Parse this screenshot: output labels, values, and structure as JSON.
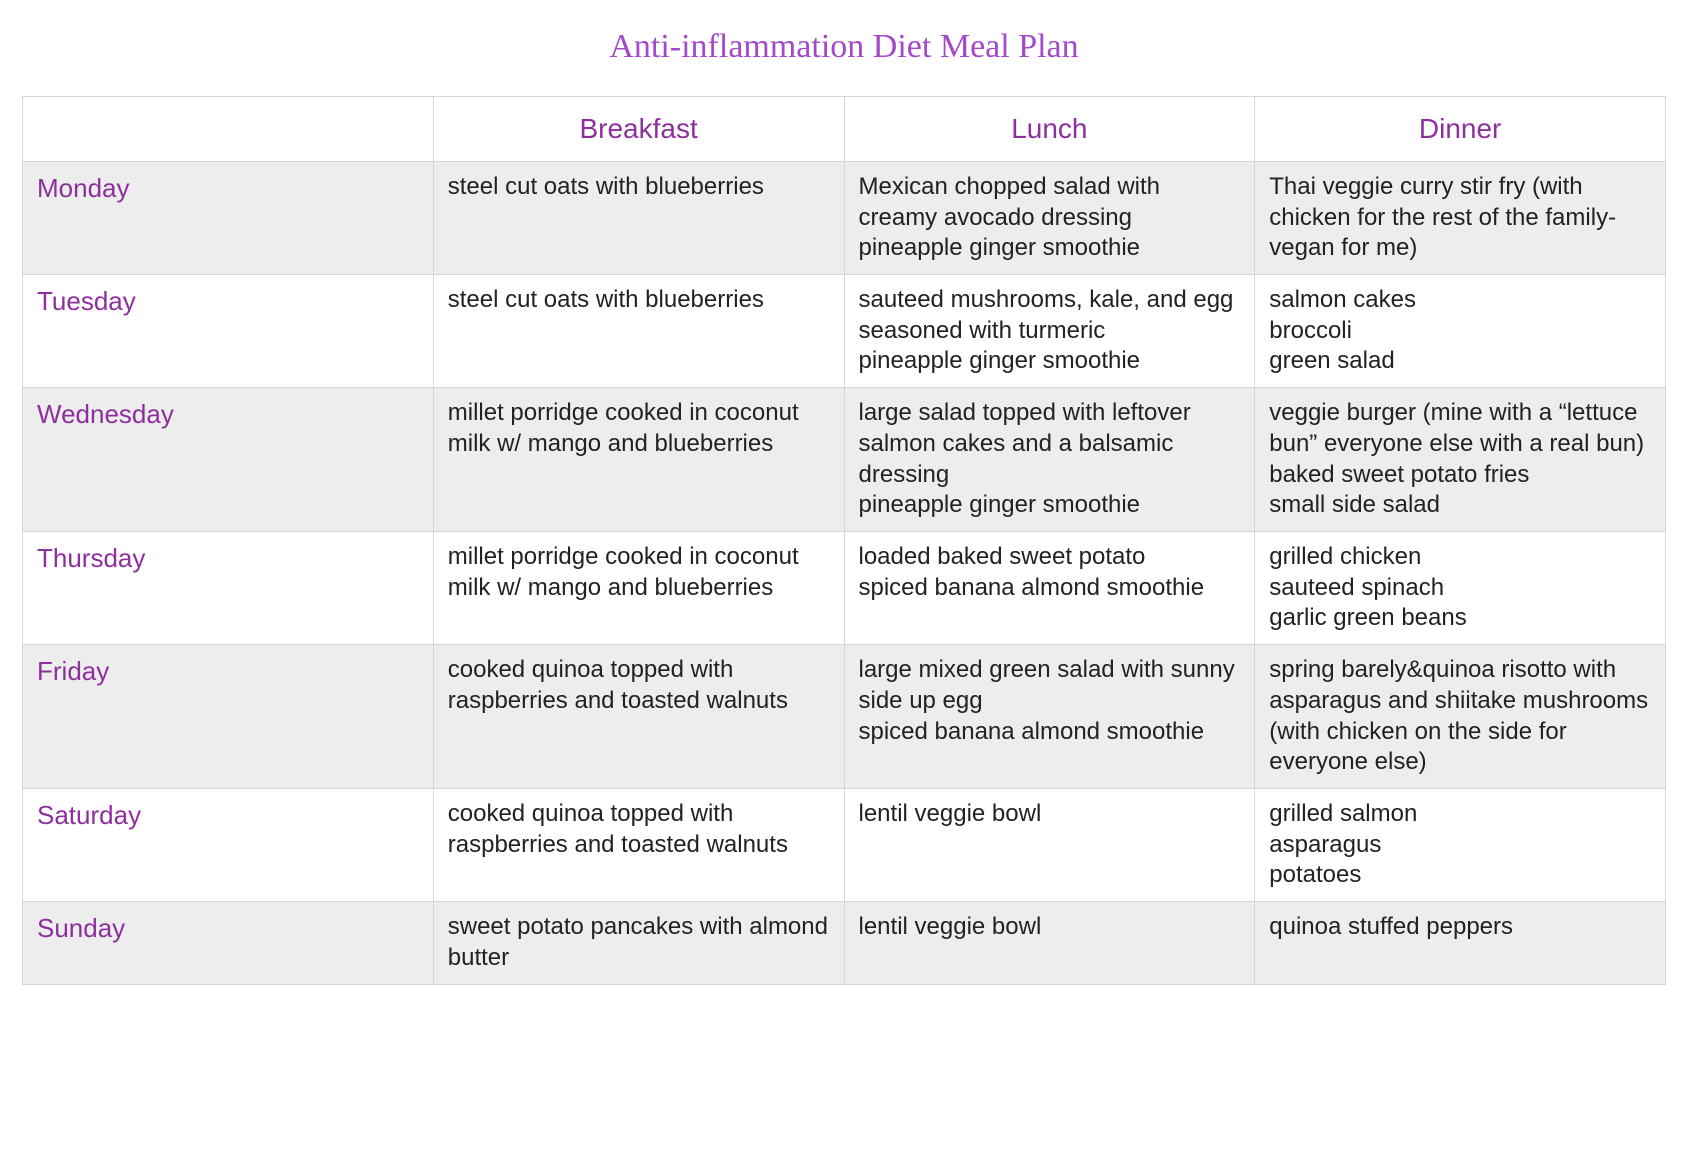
{
  "title": "Anti-inflammation Diet Meal Plan",
  "styling": {
    "title_color": "#a349c9",
    "header_color": "#8e2f9e",
    "day_color": "#8e2f9e",
    "body_text_color": "#222222",
    "border_color": "#d6d6d6",
    "row_alt_bg": "#ededed",
    "row_bg": "#ffffff",
    "title_fontsize": 34,
    "header_fontsize": 28,
    "day_fontsize": 26,
    "cell_fontsize": 24,
    "title_font": "Georgia serif",
    "body_font": "Helvetica Arial sans-serif"
  },
  "table": {
    "type": "table",
    "columns": [
      "",
      "Breakfast",
      "Lunch",
      "Dinner"
    ],
    "column_widths": [
      "25%",
      "25%",
      "25%",
      "25%"
    ],
    "rows": [
      {
        "day": "Monday",
        "breakfast": "steel cut oats with blueberries",
        "lunch": "Mexican chopped salad with creamy avocado dressing\npineapple ginger smoothie",
        "dinner": "Thai veggie curry stir fry (with chicken for the rest of the family-vegan for me)"
      },
      {
        "day": "Tuesday",
        "breakfast": "steel cut oats with blueberries",
        "lunch": "sauteed mushrooms, kale, and egg seasoned with turmeric\npineapple ginger smoothie",
        "dinner": "salmon cakes\nbroccoli\ngreen salad"
      },
      {
        "day": "Wednesday",
        "breakfast": "millet porridge cooked in coconut milk w/ mango and blueberries",
        "lunch": "large salad topped with leftover salmon cakes and a balsamic dressing\npineapple ginger smoothie",
        "dinner": "veggie burger (mine with a “lettuce bun” everyone else with a real bun)\nbaked sweet potato fries\nsmall side salad"
      },
      {
        "day": "Thursday",
        "breakfast": "millet porridge cooked in coconut milk w/ mango and blueberries",
        "lunch": "loaded baked sweet potato\nspiced banana almond smoothie",
        "dinner": "grilled chicken\nsauteed spinach\ngarlic green beans"
      },
      {
        "day": "Friday",
        "breakfast": "cooked quinoa topped with raspberries and toasted walnuts",
        "lunch": "large mixed green salad with sunny side up egg\nspiced banana almond smoothie",
        "dinner": "spring barely&quinoa risotto with asparagus and shiitake mushrooms (with chicken on the side for everyone else)"
      },
      {
        "day": "Saturday",
        "breakfast": "cooked quinoa topped with raspberries and toasted walnuts",
        "lunch": "lentil veggie bowl",
        "dinner": "grilled salmon\nasparagus\npotatoes"
      },
      {
        "day": "Sunday",
        "breakfast": "sweet potato pancakes with almond butter",
        "lunch": "lentil veggie bowl",
        "dinner": "quinoa stuffed peppers"
      }
    ]
  }
}
